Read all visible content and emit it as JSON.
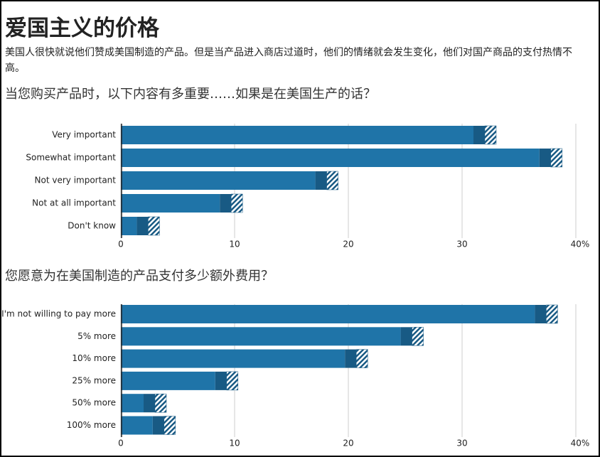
{
  "header": {
    "title": "爱国主义的价格",
    "subtitle": "美国人很快就说他们赞成美国制造的产品。但是当产品进入商店过道时，他们的情绪就会发生变化，他们对国产商品的支付热情不高。"
  },
  "chart_data": [
    {
      "type": "bar",
      "orientation": "horizontal",
      "stacked": true,
      "title": "当您购买产品时，以下内容有多重要……如果是在美国生产的话？",
      "categories": [
        "Very important",
        "Somewhat important",
        "Not very important",
        "Not at all important",
        "Don't know"
      ],
      "series": [
        {
          "color": "#1f74a8",
          "values": [
            31,
            36.8,
            17.1,
            8.7,
            1.4
          ]
        },
        {
          "color": "#185a84",
          "values": [
            1,
            1,
            1,
            1,
            1
          ]
        },
        {
          "color": "#185a84",
          "pattern": "hatch",
          "values": [
            1,
            1,
            1,
            1,
            1
          ]
        }
      ],
      "xlim": [
        0,
        40
      ],
      "xticks": [
        0,
        10,
        20,
        30,
        {
          "value": 40,
          "label": "40%"
        }
      ],
      "grid": true
    },
    {
      "type": "bar",
      "orientation": "horizontal",
      "stacked": true,
      "title": "您愿意为在美国制造的产品支付多少额外费用？",
      "categories": [
        "I'm not willing to pay more",
        "5% more",
        "10% more",
        "25% more",
        "50% more",
        "100% more"
      ],
      "series": [
        {
          "color": "#1f74a8",
          "values": [
            36.4,
            24.6,
            19.7,
            8.3,
            2,
            2.8
          ]
        },
        {
          "color": "#185a84",
          "values": [
            1,
            1,
            1,
            1,
            1,
            1
          ]
        },
        {
          "color": "#185a84",
          "pattern": "hatch",
          "values": [
            1,
            1,
            1,
            1,
            1,
            1
          ]
        }
      ],
      "xlim": [
        0,
        40
      ],
      "xticks": [
        0,
        10,
        20,
        30,
        {
          "value": 40,
          "label": "40%"
        }
      ],
      "grid": true
    }
  ]
}
